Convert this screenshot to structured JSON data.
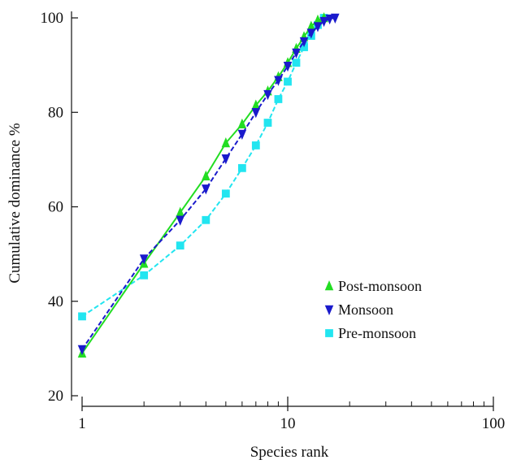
{
  "chart_data": {
    "type": "line",
    "title": "",
    "xlabel": "Species rank",
    "ylabel": "Cumulative dominance %",
    "x_scale": "log",
    "xlim": [
      1,
      100
    ],
    "ylim": [
      20,
      100
    ],
    "x_ticks": [
      1,
      10,
      100
    ],
    "x_tick_labels": [
      "1",
      "10",
      "100"
    ],
    "y_ticks": [
      20,
      40,
      60,
      80,
      100
    ],
    "y_tick_labels": [
      "20",
      "40",
      "60",
      "80",
      "100"
    ],
    "grid": false,
    "legend_position": "right",
    "series": [
      {
        "name": "Post-monsoon",
        "color": "#22dd22",
        "marker": "triangle-up",
        "line": "solid",
        "x": [
          1,
          2,
          3,
          4,
          5,
          6,
          7,
          8,
          9,
          10,
          11,
          12,
          13,
          14,
          15
        ],
        "y": [
          29,
          48,
          58.8,
          66.5,
          73.5,
          77.5,
          81.5,
          84.5,
          87.5,
          90.5,
          93.5,
          96,
          98.2,
          99.5,
          100
        ]
      },
      {
        "name": "Monsoon",
        "color": "#1a1acc",
        "marker": "triangle-down",
        "line": "dashed",
        "x": [
          1,
          2,
          3,
          4,
          5,
          6,
          7,
          8,
          9,
          10,
          11,
          12,
          13,
          14,
          15,
          16,
          17
        ],
        "y": [
          29.8,
          49,
          57.2,
          63.8,
          70.2,
          75.4,
          80,
          83.8,
          86.8,
          89.8,
          92.6,
          95,
          96.8,
          98.2,
          99.3,
          99.8,
          100
        ]
      },
      {
        "name": "Pre-monsoon",
        "color": "#22e5f0",
        "marker": "square",
        "line": "dashed",
        "x": [
          1,
          2,
          3,
          4,
          5,
          6,
          7,
          8,
          9,
          10,
          11,
          12,
          13,
          14,
          15
        ],
        "y": [
          36.8,
          45.5,
          51.8,
          57.2,
          62.8,
          68.2,
          73,
          77.8,
          82.8,
          86.5,
          90.5,
          93.8,
          96.2,
          98.5,
          100
        ]
      }
    ]
  }
}
